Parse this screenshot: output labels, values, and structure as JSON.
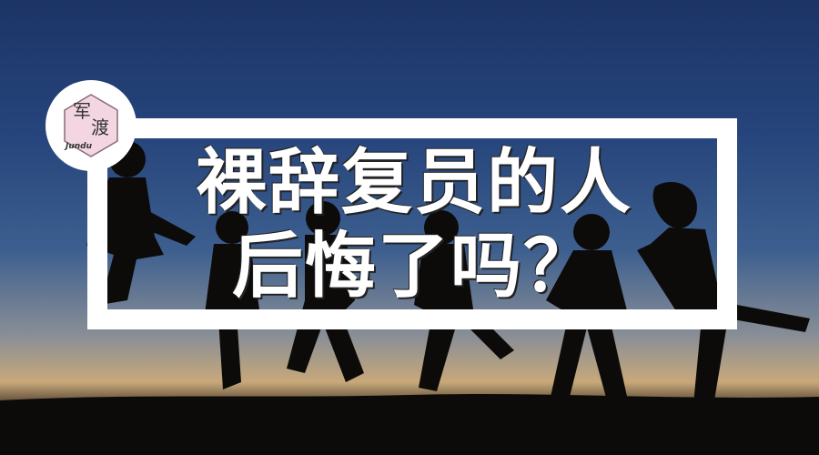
{
  "logo": {
    "char1": "军",
    "char2": "渡",
    "sub": "Jundu"
  },
  "headline": {
    "line1": "裸辞复员的人",
    "line2": "后悔了吗？"
  },
  "colors": {
    "frame": "#ffffff",
    "logo_hexagon": "#f3d6e2",
    "text": "#ffffff"
  }
}
